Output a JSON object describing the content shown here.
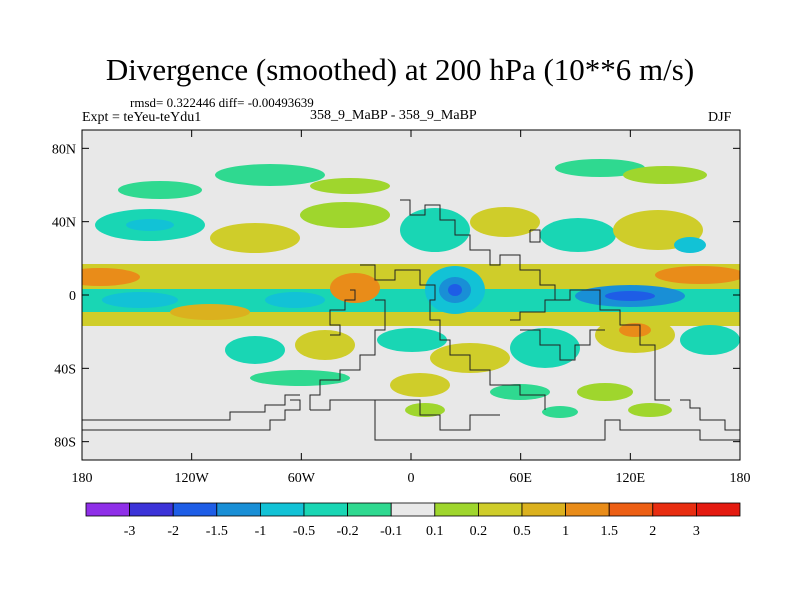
{
  "chart_data": {
    "type": "heatmap",
    "title": "Divergence (smoothed) at 200 hPa (10**6 m/s)",
    "annotations": {
      "stats": "rmsd= 0.322446 diff= -0.00493639",
      "experiment": "Expt = teYeu-teYdu1",
      "experiment_pair": "358_9_MaBP - 358_9_MaBP",
      "season": "DJF"
    },
    "x_axis": {
      "range": [
        -180,
        180
      ],
      "ticks": [
        -180,
        -120,
        -60,
        0,
        60,
        120,
        180
      ],
      "tick_labels": [
        "180",
        "120W",
        "60W",
        "0",
        "60E",
        "120E",
        "180"
      ]
    },
    "y_axis": {
      "range": [
        -90,
        90
      ],
      "ticks": [
        80,
        40,
        0,
        -40,
        -80
      ],
      "tick_labels": [
        "80N",
        "40N",
        "0",
        "40S",
        "80S"
      ]
    },
    "colorbar": {
      "levels": [
        "-3",
        "-2",
        "-1.5",
        "-1",
        "-0.5",
        "-0.2",
        "-0.1",
        "0.1",
        "0.2",
        "0.5",
        "1",
        "1.5",
        "2",
        "3"
      ],
      "colors": [
        "#8f2fe8",
        "#3c33d8",
        "#1e5de6",
        "#198fd6",
        "#12c2d6",
        "#19d6b4",
        "#2fd990",
        "#e9e9e9",
        "#9fd62d",
        "#cfcd2a",
        "#dbb11e",
        "#e98c19",
        "#ed5f14",
        "#e82d10",
        "#e41a10"
      ]
    },
    "background_color": "#e8e8e8"
  }
}
